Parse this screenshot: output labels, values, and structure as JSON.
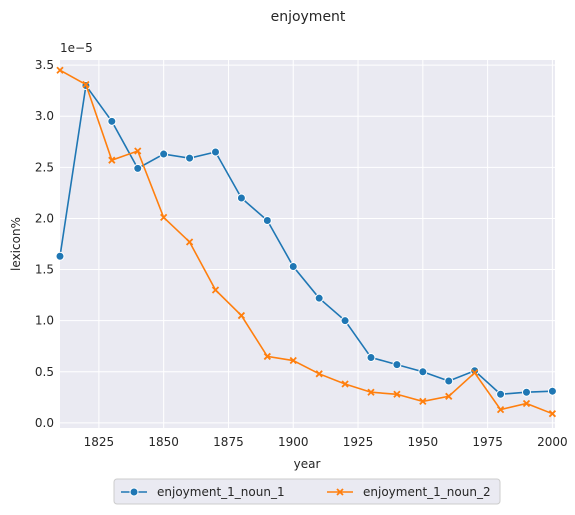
{
  "chart_data": {
    "type": "line",
    "title": "enjoyment",
    "xlabel": "year",
    "ylabel": "lexicon%",
    "y_scale_label": "1e−5",
    "xlim": [
      1810,
      2001
    ],
    "ylim": [
      -0.05,
      3.55
    ],
    "x_ticks": [
      1825,
      1850,
      1875,
      1900,
      1925,
      1950,
      1975,
      2000
    ],
    "y_ticks": [
      0.0,
      0.5,
      1.0,
      1.5,
      2.0,
      2.5,
      3.0,
      3.5
    ],
    "y_tick_labels": [
      "0.0",
      "0.5",
      "1.0",
      "1.5",
      "2.0",
      "2.5",
      "3.0",
      "3.5"
    ],
    "grid": true,
    "legend_position": "bottom-center",
    "x": [
      1810,
      1820,
      1830,
      1840,
      1850,
      1860,
      1870,
      1880,
      1890,
      1900,
      1910,
      1920,
      1930,
      1940,
      1950,
      1960,
      1970,
      1980,
      1990,
      2000
    ],
    "series": [
      {
        "name": "enjoyment_1_noun_1",
        "color": "#1f77b4",
        "marker": "circle",
        "values": [
          1.63,
          3.3,
          2.95,
          2.49,
          2.63,
          2.59,
          2.65,
          2.2,
          1.98,
          1.53,
          1.22,
          1.0,
          0.64,
          0.57,
          0.5,
          0.41,
          0.51,
          0.28,
          0.3,
          0.31
        ]
      },
      {
        "name": "enjoyment_1_noun_2",
        "color": "#ff7f0e",
        "marker": "x",
        "values": [
          3.45,
          3.31,
          2.57,
          2.66,
          2.01,
          1.77,
          1.3,
          1.05,
          0.65,
          0.61,
          0.48,
          0.38,
          0.3,
          0.28,
          0.21,
          0.26,
          0.49,
          0.13,
          0.19,
          0.09
        ]
      }
    ]
  }
}
